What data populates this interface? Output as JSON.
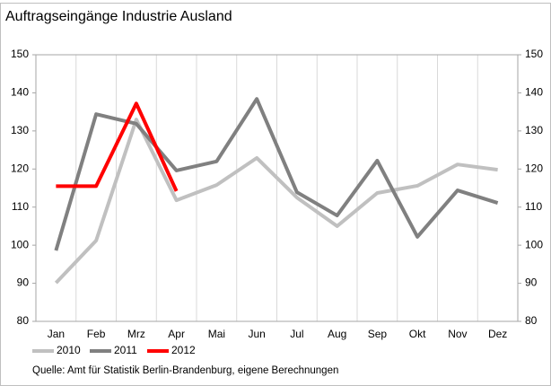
{
  "chart_data": {
    "type": "line",
    "title": "Auftragseingänge Industrie Ausland",
    "source": "Quelle: Amt für Statistik Berlin-Brandenburg, eigene Berechnungen",
    "categories": [
      "Jan",
      "Feb",
      "Mrz",
      "Apr",
      "Mai",
      "Jun",
      "Jul",
      "Aug",
      "Sep",
      "Okt",
      "Nov",
      "Dez"
    ],
    "series": [
      {
        "name": "2010",
        "color": "#c0c0c0",
        "values": [
          90.1,
          101.2,
          133,
          111.8,
          115.8,
          122.9,
          112.5,
          105,
          113.7,
          115.6,
          121.2,
          119.8
        ]
      },
      {
        "name": "2011",
        "color": "#808080",
        "values": [
          98.6,
          134.4,
          131.9,
          119.6,
          122,
          138.4,
          113.9,
          107.8,
          122.2,
          102.2,
          114.4,
          111.1
        ]
      },
      {
        "name": "2012",
        "color": "#ff0000",
        "values": [
          115.5,
          115.5,
          137.2,
          114.2,
          null,
          null,
          null,
          null,
          null,
          null,
          null,
          null
        ]
      }
    ],
    "ylim": [
      80,
      150
    ],
    "yticks": [
      80,
      90,
      100,
      110,
      120,
      130,
      140,
      150
    ],
    "legend": "bottom"
  }
}
